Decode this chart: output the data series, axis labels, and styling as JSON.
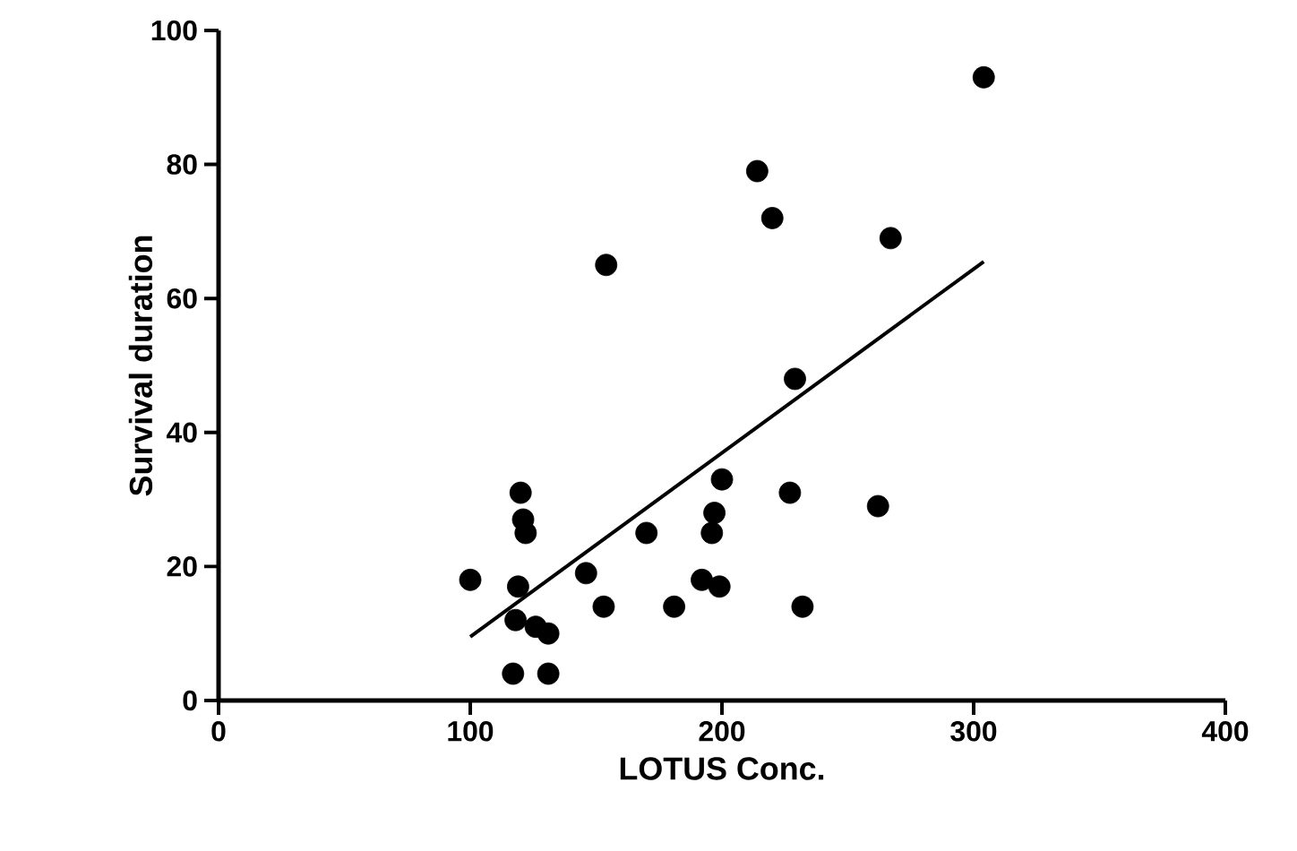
{
  "chart_data": {
    "type": "scatter",
    "xlabel": "LOTUS Conc.",
    "ylabel": "Survival duration",
    "xlim": [
      0,
      400
    ],
    "ylim": [
      0,
      100
    ],
    "xticks": [
      0,
      100,
      200,
      300,
      400
    ],
    "yticks": [
      0,
      20,
      40,
      60,
      80,
      100
    ],
    "marker": "circle",
    "grid": false,
    "series": [
      {
        "color": "#000000",
        "x": [
          100,
          117,
          118,
          119,
          120,
          121,
          122,
          126,
          131,
          131,
          146,
          153,
          154,
          170,
          181,
          192,
          196,
          197,
          199,
          200,
          214,
          220,
          227,
          229,
          232,
          262,
          267,
          304
        ],
        "values": [
          18,
          4,
          12,
          17,
          31,
          27,
          25,
          11,
          10,
          4,
          19,
          14,
          65,
          25,
          14,
          18,
          25,
          28,
          17,
          33,
          79,
          72,
          31,
          48,
          14,
          29,
          69,
          93
        ]
      },
      {
        "type": "line",
        "color": "#000000",
        "marker": "none",
        "line_style": "solid",
        "x": [
          100,
          304
        ],
        "values": [
          9.5,
          65.5
        ]
      }
    ]
  }
}
